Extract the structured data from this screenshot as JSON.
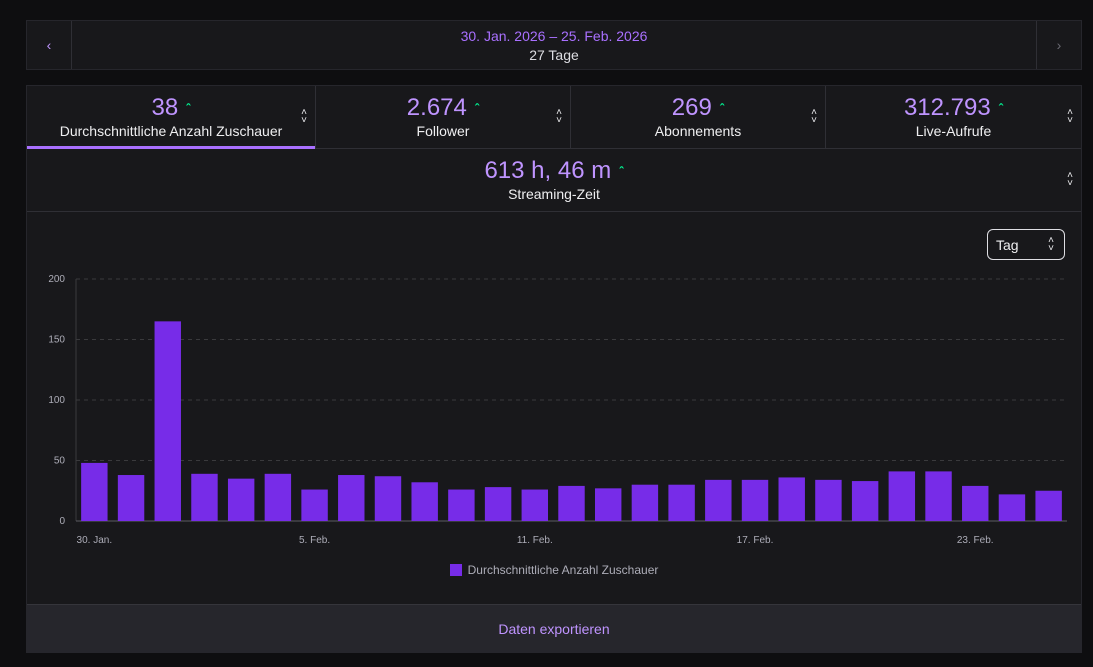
{
  "date_nav": {
    "prev_icon": "chevron-left",
    "next_icon": "chevron-right",
    "range": "30. Jan. 2026 – 25. Feb. 2026",
    "days": "27 Tage"
  },
  "stats": [
    {
      "value": "38",
      "label": "Durchschnittliche Anzahl Zuschauer",
      "trend": "up",
      "active": true
    },
    {
      "value": "2.674",
      "label": "Follower",
      "trend": "up",
      "active": false
    },
    {
      "value": "269",
      "label": "Abonnements",
      "trend": "up",
      "active": false
    },
    {
      "value": "312.793",
      "label": "Live-Aufrufe",
      "trend": "up",
      "active": false
    }
  ],
  "streaming": {
    "value": "613 h, 46 m",
    "label": "Streaming-Zeit",
    "trend": "up"
  },
  "granularity": {
    "selected": "Tag"
  },
  "colors": {
    "accent": "#a970ff",
    "bar": "#772ce8",
    "trend_up": "#00f593"
  },
  "chart_data": {
    "type": "bar",
    "title": "",
    "categories": [
      "30. Jan.",
      "31. Jan.",
      "1. Feb.",
      "2. Feb.",
      "3. Feb.",
      "4. Feb.",
      "5. Feb.",
      "6. Feb.",
      "7. Feb.",
      "8. Feb.",
      "9. Feb.",
      "10. Feb.",
      "11. Feb.",
      "12. Feb.",
      "13. Feb.",
      "14. Feb.",
      "15. Feb.",
      "16. Feb.",
      "17. Feb.",
      "18. Feb.",
      "19. Feb.",
      "20. Feb.",
      "21. Feb.",
      "22. Feb.",
      "23. Feb.",
      "24. Feb.",
      "25. Feb."
    ],
    "values": [
      48,
      38,
      165,
      39,
      35,
      39,
      26,
      38,
      37,
      32,
      26,
      28,
      26,
      29,
      27,
      30,
      30,
      34,
      34,
      36,
      34,
      33,
      41,
      41,
      29,
      22,
      25
    ],
    "tick_labels": [
      "30. Jan.",
      "5. Feb.",
      "11. Feb.",
      "17. Feb.",
      "23. Feb."
    ],
    "tick_indices": [
      0,
      6,
      12,
      18,
      24
    ],
    "ylim": [
      0,
      200
    ],
    "yticks": [
      0,
      50,
      100,
      150,
      200
    ],
    "grid": true,
    "legend": "Durchschnittliche Anzahl Zuschauer",
    "legend_position": "bottom-center",
    "series_name": "Durchschnittliche Anzahl Zuschauer"
  },
  "export": {
    "label": "Daten exportieren"
  }
}
